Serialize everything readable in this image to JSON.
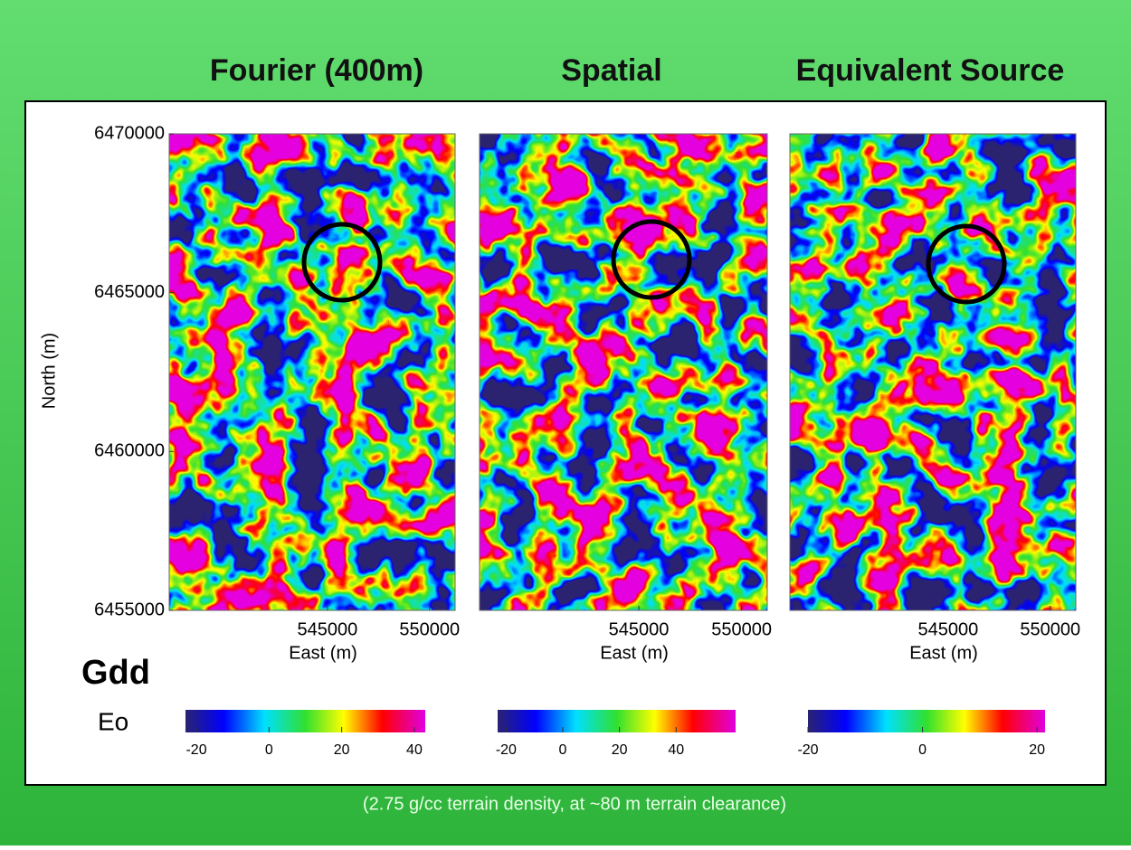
{
  "slide": {
    "label": "Gdd",
    "unit": "Eo",
    "caption": "(2.75 g/cc terrain density, at ~80 m terrain clearance)"
  },
  "chart_data": [
    {
      "type": "map",
      "title": "Fourier (400m)",
      "xlabel": "East (m)",
      "ylabel": "North (m)",
      "xlim": [
        537250,
        551250
      ],
      "ylim": [
        6455000,
        6470000
      ],
      "xticks": [
        545000,
        550000
      ],
      "yticks": [
        6455000,
        6460000,
        6465000,
        6470000
      ],
      "colorbar_lim": [
        -23,
        43
      ],
      "colorbar_ticks": [
        -20,
        0,
        20,
        40
      ]
    },
    {
      "type": "map",
      "title": "Spatial",
      "xlabel": "East (m)",
      "xlim": [
        537250,
        551250
      ],
      "ylim": [
        6455000,
        6470000
      ],
      "xticks": [
        545000,
        550000
      ],
      "colorbar_lim": [
        -23,
        61
      ],
      "colorbar_ticks": [
        -20,
        0,
        20,
        40
      ]
    },
    {
      "type": "map",
      "title": "Equivalent Source",
      "xlabel": "East (m)",
      "xlim": [
        537250,
        551250
      ],
      "ylim": [
        6455000,
        6470000
      ],
      "xticks": [
        545000,
        550000
      ],
      "colorbar_lim": [
        -20,
        21.4
      ],
      "colorbar_ticks": [
        -20,
        0,
        20
      ]
    }
  ]
}
